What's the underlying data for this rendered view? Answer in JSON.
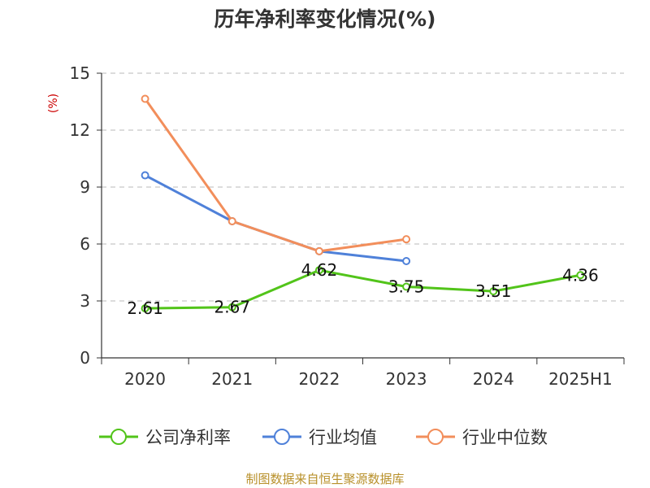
{
  "chart_data": {
    "type": "line",
    "title": "历年净利率变化情况(%)",
    "ylabel": "(%)",
    "xlabel": "",
    "categories": [
      "2020",
      "2021",
      "2022",
      "2023",
      "2024",
      "2025H1"
    ],
    "ylim": [
      0,
      15
    ],
    "yticks": [
      0,
      3,
      6,
      9,
      12,
      15
    ],
    "grid": true,
    "legend_position": "bottom",
    "series": [
      {
        "name": "公司净利率",
        "color": "#52c41a",
        "values": [
          2.61,
          2.67,
          4.62,
          3.75,
          3.51,
          4.36
        ],
        "labels": [
          "2.61",
          "2.67",
          "4.62",
          "3.75",
          "3.51",
          "4.36"
        ]
      },
      {
        "name": "行业均值",
        "color": "#4f81d9",
        "values": [
          9.62,
          7.2,
          5.62,
          5.1,
          null,
          null
        ]
      },
      {
        "name": "行业中位数",
        "color": "#f28e5b",
        "values": [
          13.65,
          7.2,
          5.62,
          6.25,
          null,
          null
        ]
      }
    ]
  },
  "source": "制图数据来自恒生聚源数据库"
}
